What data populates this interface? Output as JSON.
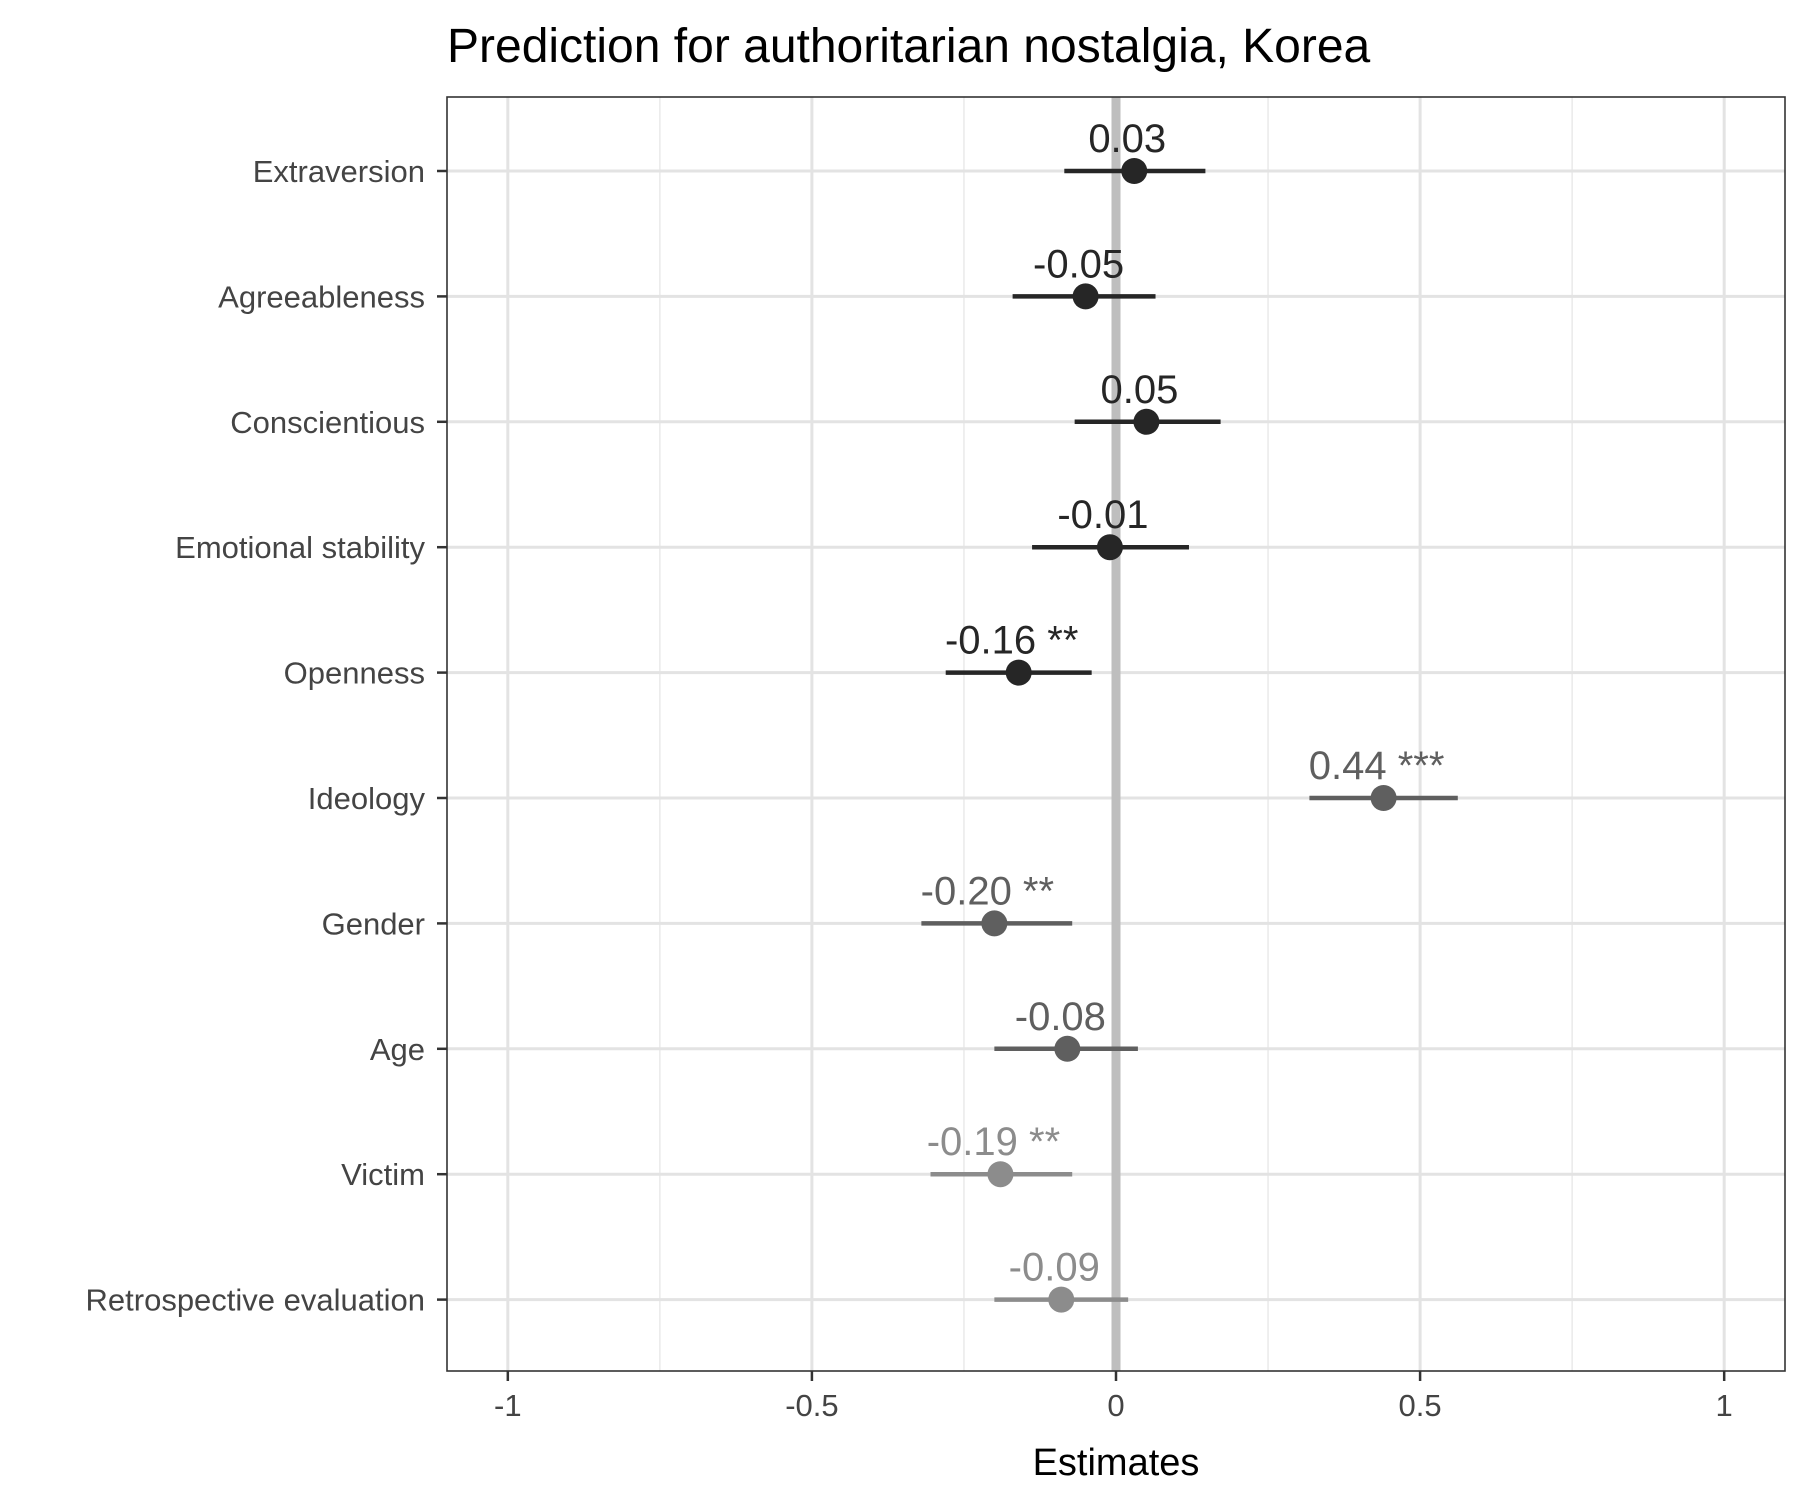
{
  "chart_data": {
    "type": "scatter",
    "subtype": "coefficient-plot",
    "title": "Prediction for authoritarian nostalgia, Korea",
    "xlabel": "Estimates",
    "ylabel": "",
    "xlim": [
      -1.1,
      1.1
    ],
    "x_ticks": [
      -1,
      -0.5,
      0,
      0.5,
      1
    ],
    "x_tick_labels": [
      "-1",
      "-0.5",
      "0",
      "0.5",
      "1"
    ],
    "grid": true,
    "reference_line": {
      "x": 0,
      "color": "#bebebe"
    },
    "categories": [
      "Extraversion",
      "Agreeableness",
      "Conscientious",
      "Emotional stability",
      "Openness",
      "Ideology",
      "Gender",
      "Age",
      "Victim",
      "Retrospective evaluation"
    ],
    "estimates": [
      {
        "term": "Extraversion",
        "estimate": 0.03,
        "ci_low": -0.085,
        "ci_high": 0.147,
        "label": "0.03",
        "color": "#262626"
      },
      {
        "term": "Agreeableness",
        "estimate": -0.05,
        "ci_low": -0.17,
        "ci_high": 0.065,
        "label": "-0.05",
        "color": "#262626"
      },
      {
        "term": "Conscientious",
        "estimate": 0.05,
        "ci_low": -0.068,
        "ci_high": 0.172,
        "label": "0.05",
        "color": "#262626"
      },
      {
        "term": "Emotional stability",
        "estimate": -0.01,
        "ci_low": -0.138,
        "ci_high": 0.12,
        "label": "-0.01",
        "color": "#262626"
      },
      {
        "term": "Openness",
        "estimate": -0.16,
        "ci_low": -0.28,
        "ci_high": -0.04,
        "label": "-0.16 **",
        "color": "#262626"
      },
      {
        "term": "Ideology",
        "estimate": 0.44,
        "ci_low": 0.318,
        "ci_high": 0.562,
        "label": "0.44 ***",
        "color": "#5f5f5f"
      },
      {
        "term": "Gender",
        "estimate": -0.2,
        "ci_low": -0.32,
        "ci_high": -0.072,
        "label": "-0.20 **",
        "color": "#5f5f5f"
      },
      {
        "term": "Age",
        "estimate": -0.08,
        "ci_low": -0.2,
        "ci_high": 0.036,
        "label": "-0.08",
        "color": "#5f5f5f"
      },
      {
        "term": "Victim",
        "estimate": -0.19,
        "ci_low": -0.305,
        "ci_high": -0.072,
        "label": "-0.19 **",
        "color": "#8c8c8c"
      },
      {
        "term": "Retrospective evaluation",
        "estimate": -0.09,
        "ci_low": -0.2,
        "ci_high": 0.02,
        "label": "-0.09",
        "color": "#8c8c8c"
      }
    ]
  }
}
